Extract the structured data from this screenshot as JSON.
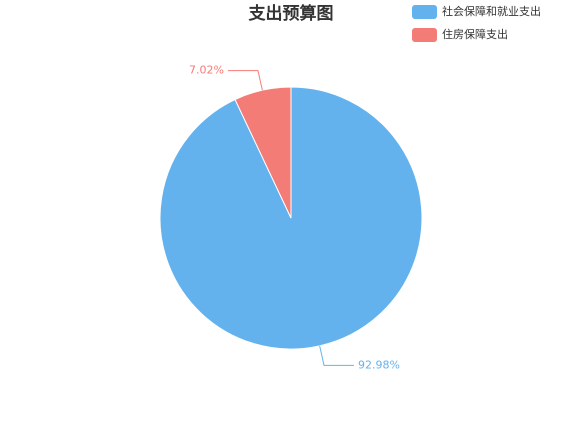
{
  "chart_data": {
    "type": "pie",
    "title": "支出预算图",
    "categories": [
      "社会保障和就业支出",
      "住房保障支出"
    ],
    "values": [
      92.98,
      7.02
    ],
    "value_labels": [
      "92.98%",
      "7.02%"
    ],
    "colors": [
      "#63b2ee",
      "#f47c76"
    ]
  }
}
